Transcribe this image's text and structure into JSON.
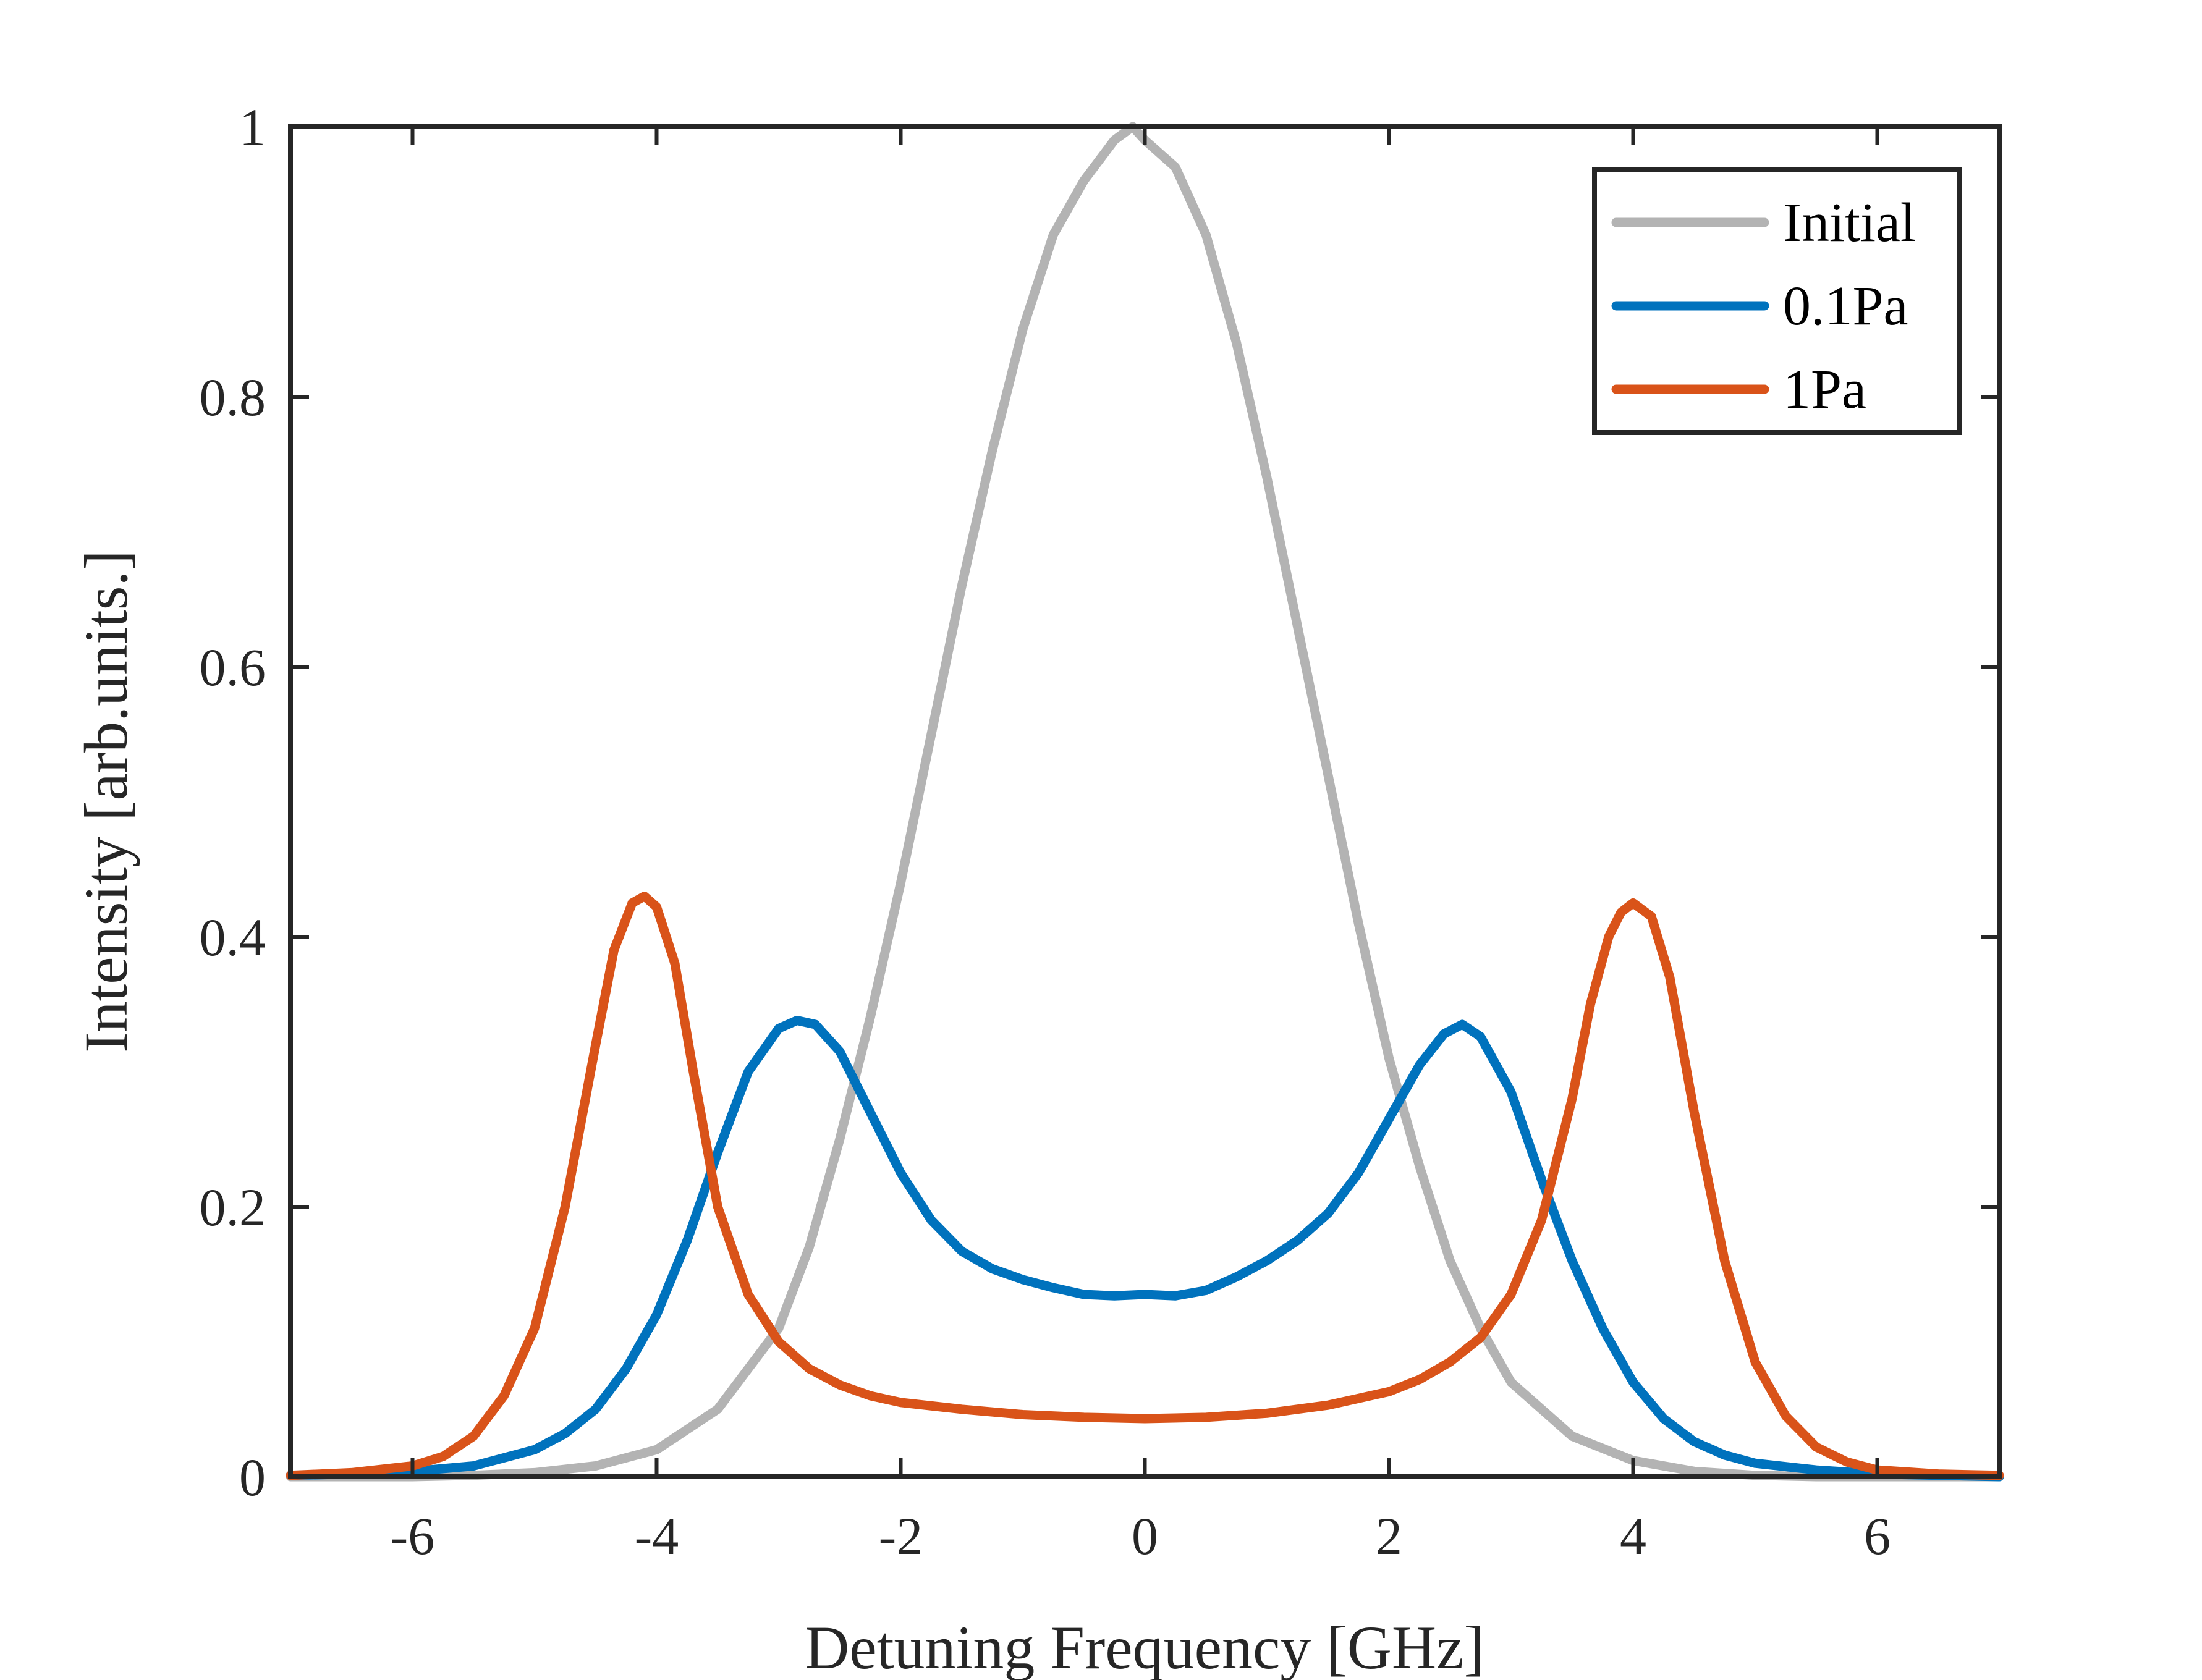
{
  "chart_data": {
    "type": "line",
    "title": "",
    "xlabel": "Detuning Frequency [GHz]",
    "ylabel": "Intensity [arb.units.]",
    "xlim": [
      -7,
      7
    ],
    "ylim": [
      0,
      1
    ],
    "xticks": [
      -6,
      -4,
      -2,
      0,
      2,
      4,
      6
    ],
    "xtick_labels": [
      "-6",
      "-4",
      "-2",
      "0",
      "2",
      "4",
      "6"
    ],
    "yticks": [
      0,
      0.2,
      0.4,
      0.6,
      0.8,
      1
    ],
    "ytick_labels": [
      "0",
      "0.2",
      "0.4",
      "0.6",
      "0.8",
      "1"
    ],
    "grid": false,
    "legend_position": "top-right",
    "series": [
      {
        "name": "Initial",
        "color": "#b3b3b3",
        "x": [
          -7,
          -6.5,
          -6,
          -5.5,
          -5,
          -4.5,
          -4,
          -3.5,
          -3,
          -2.75,
          -2.5,
          -2.25,
          -2,
          -1.75,
          -1.5,
          -1.25,
          -1,
          -0.75,
          -0.5,
          -0.25,
          -0.1,
          0,
          0.25,
          0.5,
          0.75,
          1,
          1.25,
          1.5,
          1.75,
          2,
          2.25,
          2.5,
          2.75,
          3,
          3.5,
          4,
          4.5,
          5,
          5.5,
          6,
          6.5,
          7
        ],
        "values": [
          0,
          0,
          0,
          0.001,
          0.003,
          0.008,
          0.02,
          0.05,
          0.11,
          0.17,
          0.25,
          0.34,
          0.44,
          0.55,
          0.66,
          0.76,
          0.85,
          0.92,
          0.96,
          0.99,
          1.0,
          0.99,
          0.97,
          0.92,
          0.84,
          0.74,
          0.63,
          0.52,
          0.41,
          0.31,
          0.23,
          0.16,
          0.11,
          0.07,
          0.03,
          0.012,
          0.004,
          0.001,
          0,
          0,
          0,
          0
        ]
      },
      {
        "name": "0.1Pa",
        "color": "#0072bd",
        "x": [
          -7,
          -6.5,
          -6,
          -5.5,
          -5,
          -4.75,
          -4.5,
          -4.25,
          -4,
          -3.75,
          -3.5,
          -3.25,
          -3,
          -2.85,
          -2.7,
          -2.5,
          -2.25,
          -2,
          -1.75,
          -1.5,
          -1.25,
          -1,
          -0.75,
          -0.5,
          -0.25,
          0,
          0.25,
          0.5,
          0.75,
          1,
          1.25,
          1.5,
          1.75,
          2,
          2.25,
          2.45,
          2.6,
          2.75,
          3,
          3.25,
          3.5,
          3.75,
          4,
          4.25,
          4.5,
          4.75,
          5,
          5.5,
          6,
          6.5,
          7
        ],
        "values": [
          0.001,
          0.002,
          0.004,
          0.008,
          0.02,
          0.032,
          0.05,
          0.08,
          0.12,
          0.175,
          0.24,
          0.3,
          0.332,
          0.338,
          0.335,
          0.315,
          0.27,
          0.225,
          0.19,
          0.167,
          0.154,
          0.146,
          0.14,
          0.135,
          0.134,
          0.135,
          0.134,
          0.138,
          0.148,
          0.16,
          0.175,
          0.195,
          0.225,
          0.265,
          0.305,
          0.328,
          0.335,
          0.326,
          0.285,
          0.22,
          0.16,
          0.11,
          0.07,
          0.043,
          0.026,
          0.016,
          0.01,
          0.005,
          0.002,
          0.001,
          0
        ]
      },
      {
        "name": "1Pa",
        "color": "#d95319",
        "x": [
          -7,
          -6.5,
          -6,
          -5.75,
          -5.5,
          -5.25,
          -5,
          -4.75,
          -4.5,
          -4.35,
          -4.2,
          -4.1,
          -4,
          -3.85,
          -3.7,
          -3.5,
          -3.25,
          -3,
          -2.75,
          -2.5,
          -2.25,
          -2,
          -1.5,
          -1,
          -0.5,
          0,
          0.5,
          1,
          1.5,
          2,
          2.25,
          2.5,
          2.75,
          3,
          3.25,
          3.5,
          3.65,
          3.8,
          3.9,
          4,
          4.15,
          4.3,
          4.5,
          4.75,
          5,
          5.25,
          5.5,
          5.75,
          6,
          6.5,
          7
        ],
        "values": [
          0.001,
          0.003,
          0.008,
          0.015,
          0.03,
          0.06,
          0.11,
          0.2,
          0.32,
          0.39,
          0.425,
          0.43,
          0.422,
          0.38,
          0.3,
          0.2,
          0.135,
          0.1,
          0.08,
          0.068,
          0.06,
          0.055,
          0.05,
          0.046,
          0.044,
          0.043,
          0.044,
          0.047,
          0.053,
          0.063,
          0.072,
          0.085,
          0.103,
          0.135,
          0.19,
          0.28,
          0.35,
          0.4,
          0.418,
          0.425,
          0.415,
          0.37,
          0.27,
          0.16,
          0.085,
          0.045,
          0.022,
          0.011,
          0.005,
          0.002,
          0.001
        ]
      }
    ]
  }
}
